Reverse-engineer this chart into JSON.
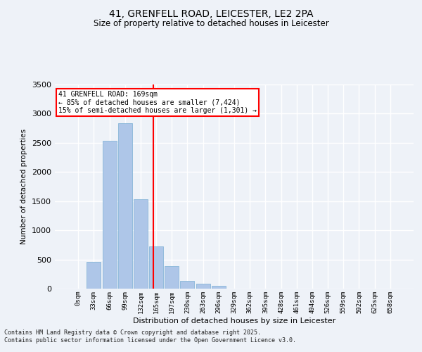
{
  "title1": "41, GRENFELL ROAD, LEICESTER, LE2 2PA",
  "title2": "Size of property relative to detached houses in Leicester",
  "xlabel": "Distribution of detached houses by size in Leicester",
  "ylabel": "Number of detached properties",
  "categories": [
    "0sqm",
    "33sqm",
    "66sqm",
    "99sqm",
    "132sqm",
    "165sqm",
    "197sqm",
    "230sqm",
    "263sqm",
    "296sqm",
    "329sqm",
    "362sqm",
    "395sqm",
    "428sqm",
    "461sqm",
    "494sqm",
    "526sqm",
    "559sqm",
    "592sqm",
    "625sqm",
    "658sqm"
  ],
  "values": [
    0,
    460,
    2530,
    2840,
    1530,
    720,
    390,
    135,
    80,
    45,
    0,
    0,
    0,
    0,
    0,
    0,
    0,
    0,
    0,
    0,
    0
  ],
  "bar_color": "#aec6e8",
  "bar_edge_color": "#7aafd4",
  "vline_x": 4.82,
  "vline_color": "red",
  "annotation_text": "41 GRENFELL ROAD: 169sqm\n← 85% of detached houses are smaller (7,424)\n15% of semi-detached houses are larger (1,301) →",
  "annotation_box_color": "white",
  "annotation_box_edge": "red",
  "ylim": [
    0,
    3500
  ],
  "yticks": [
    0,
    500,
    1000,
    1500,
    2000,
    2500,
    3000,
    3500
  ],
  "footer": "Contains HM Land Registry data © Crown copyright and database right 2025.\nContains public sector information licensed under the Open Government Licence v3.0.",
  "bg_color": "#eef2f8",
  "grid_color": "white"
}
